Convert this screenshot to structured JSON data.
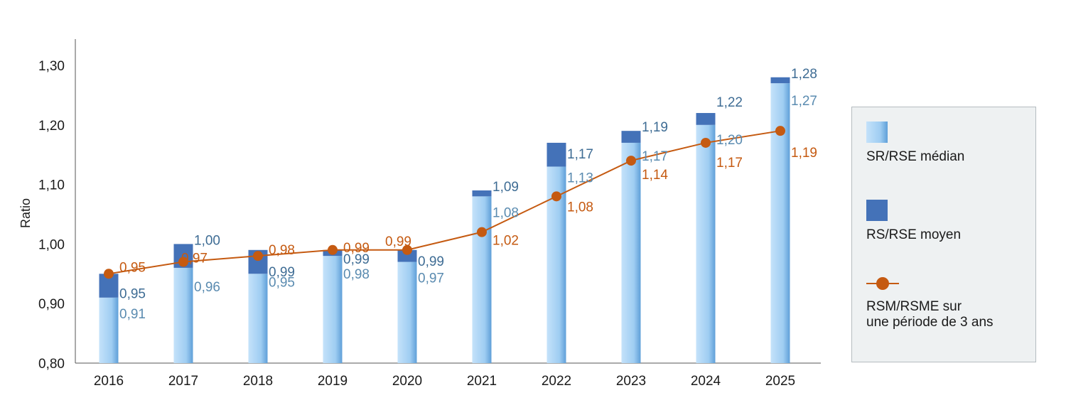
{
  "chart_data": {
    "type": "bar",
    "ylabel": "Ratio",
    "xlabel": "",
    "ylim": [
      0.8,
      1.3
    ],
    "yticks": [
      "0,80",
      "0,90",
      "1,00",
      "1,10",
      "1,20",
      "1,30"
    ],
    "categories": [
      "2016",
      "2017",
      "2018",
      "2019",
      "2020",
      "2021",
      "2022",
      "2023",
      "2024",
      "2025"
    ],
    "series": [
      {
        "name": "SR/RSE médian",
        "kind": "bar",
        "values": [
          0.91,
          0.96,
          0.95,
          0.98,
          0.97,
          1.08,
          1.13,
          1.17,
          1.2,
          1.27
        ],
        "labels": [
          "0,91",
          "0,96",
          "0,95",
          "0,98",
          "0,97",
          "1,08",
          "1,13",
          "1,17",
          "1,20",
          "1,27"
        ],
        "color": "#9fcdf2"
      },
      {
        "name": "RS/RSE moyen",
        "kind": "bar-stacked-top",
        "values": [
          0.95,
          1.0,
          0.99,
          0.99,
          0.99,
          1.09,
          1.17,
          1.19,
          1.22,
          1.28
        ],
        "labels": [
          "0,95",
          "1,00",
          "0,99",
          "0,99",
          "0,99",
          "1,09",
          "1,17",
          "1,19",
          "1,22",
          "1,28"
        ],
        "color": "#4472b8"
      },
      {
        "name": "RSM/RSME sur\nune période de 3 ans",
        "kind": "line",
        "values": [
          0.95,
          0.97,
          0.98,
          0.99,
          0.99,
          1.02,
          1.08,
          1.14,
          1.17,
          1.19
        ],
        "labels": [
          "0,95",
          "0,97",
          "0,98",
          "0,99",
          "0,99",
          "1,02",
          "1,08",
          "1,14",
          "1,17",
          "1,19"
        ],
        "color": "#c55a11"
      }
    ],
    "grid": false,
    "legend_position": "right"
  },
  "colors": {
    "bar_text": "#5a8bb0",
    "top_text": "#3e6c94",
    "line_text": "#c55a11"
  },
  "legend": {
    "median_label": "SR/RSE médian",
    "mean_label": "RS/RSE moyen",
    "line_label_1": "RSM/RSME sur",
    "line_label_2": "une période de 3 ans"
  }
}
